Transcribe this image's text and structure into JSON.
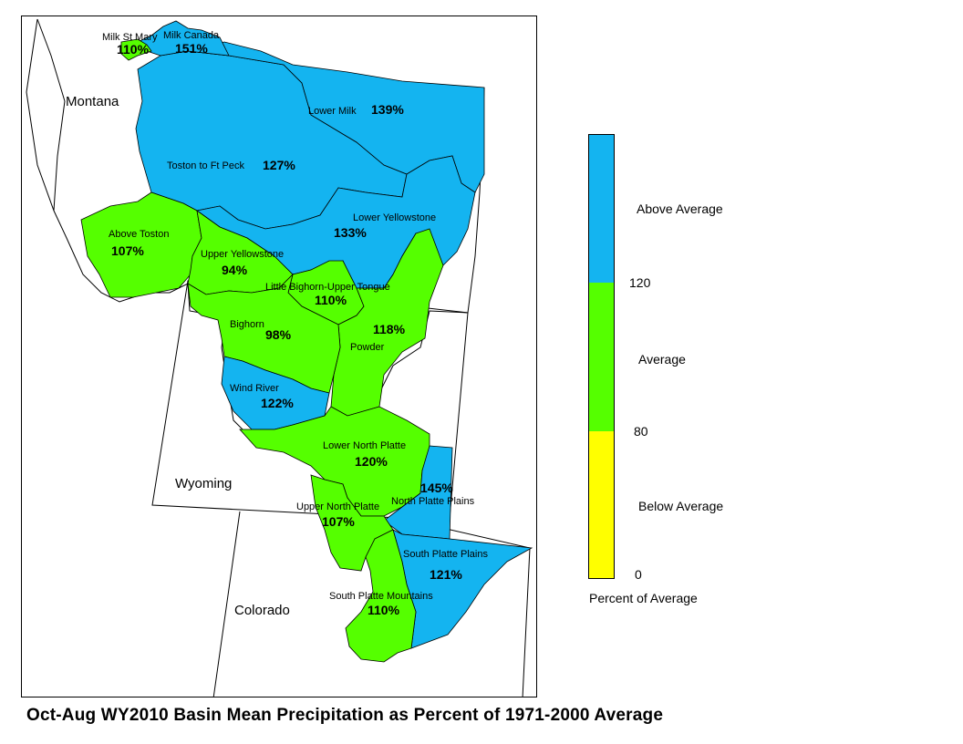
{
  "colors": {
    "above": "#14b4f0",
    "average": "#55ff00",
    "below": "#ffff00",
    "stroke": "#000000"
  },
  "states": {
    "montana": "Montana",
    "wyoming": "Wyoming",
    "colorado": "Colorado"
  },
  "basins": {
    "milk_st_mary": {
      "name": "Milk St Mary",
      "pct": "110%",
      "category": "average"
    },
    "milk_canada": {
      "name": "Milk Canada",
      "pct": "151%",
      "category": "above"
    },
    "lower_milk": {
      "name": "Lower Milk",
      "pct": "139%",
      "category": "above"
    },
    "toston_to_ft_peck": {
      "name": "Toston to Ft Peck",
      "pct": "127%",
      "category": "above"
    },
    "lower_yellowstone": {
      "name": "Lower Yellowstone",
      "pct": "133%",
      "category": "above"
    },
    "above_toston": {
      "name": "Above Toston",
      "pct": "107%",
      "category": "average"
    },
    "upper_yellowstone": {
      "name": "Upper Yellowstone",
      "pct": "94%",
      "category": "average"
    },
    "little_bighorn_upper_tongue": {
      "name": "Little Bighorn-Upper Tongue",
      "pct": "110%",
      "category": "average"
    },
    "bighorn": {
      "name": "Bighorn",
      "pct": "98%",
      "category": "average"
    },
    "powder": {
      "name": "Powder",
      "pct": "118%",
      "category": "average"
    },
    "wind_river": {
      "name": "Wind River",
      "pct": "122%",
      "category": "above"
    },
    "lower_north_platte": {
      "name": "Lower North Platte",
      "pct": "120%",
      "category": "average"
    },
    "north_platte_plains": {
      "name": "North Platte Plains",
      "pct": "145%",
      "category": "above"
    },
    "upper_north_platte": {
      "name": "Upper North Platte",
      "pct": "107%",
      "category": "average"
    },
    "south_platte_plains": {
      "name": "South Platte Plains",
      "pct": "121%",
      "category": "above"
    },
    "south_platte_mountains": {
      "name": "South Platte Mountains",
      "pct": "110%",
      "category": "average"
    }
  },
  "legend": {
    "above_label": "Above Average",
    "average_label": "Average",
    "below_label": "Below Average",
    "tick_120": "120",
    "tick_80": "80",
    "tick_0": "0",
    "caption": "Percent of Average"
  },
  "title": "Oct-Aug WY2010 Basin Mean Precipitation as Percent of 1971-2000 Average"
}
